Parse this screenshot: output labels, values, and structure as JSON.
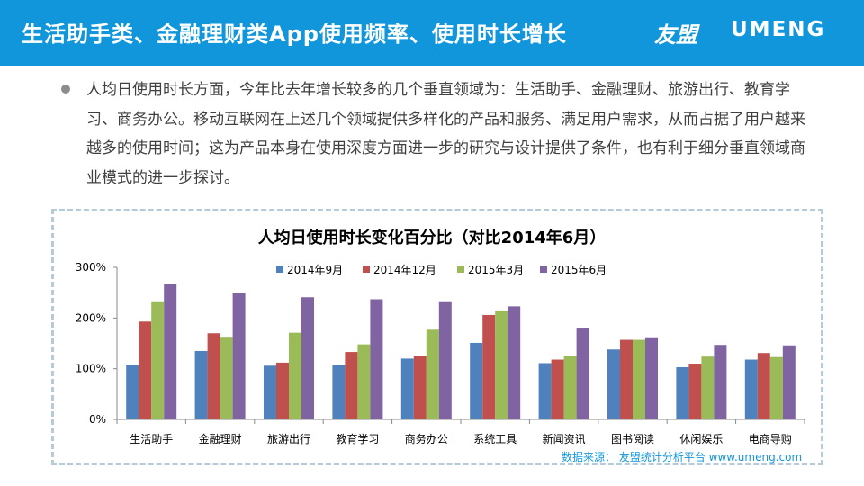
{
  "header": {
    "title": "生活助手类、金融理财类App使用频率、使用时长增长",
    "brand_cn": "友盟",
    "brand_en": "UMENG"
  },
  "paragraph": "人均日使用时长方面，今年比去年增长较多的几个垂直领域为：生活助手、金融理财、旅游出行、教育学习、商务办公。移动互联网在上述几个领域提供多样化的产品和服务、满足用户需求，从而占据了用户越来越多的使用时间；这为产品本身在使用深度方面进一步的研究与设计提供了条件，也有利于细分垂直领域商业模式的进一步探讨。",
  "source": "数据来源： 友盟统计分析平台 www.umeng.com",
  "colors": {
    "header_bg": "#1296db",
    "series": [
      "#4f81bd",
      "#c0504d",
      "#9bbb59",
      "#8064a2"
    ]
  },
  "chart_data": {
    "type": "bar",
    "title": "人均日使用时长变化百分比（对比2014年6月）",
    "xlabel": "",
    "ylabel": "",
    "ylim": [
      0,
      300
    ],
    "yticks": [
      0,
      100,
      200,
      300
    ],
    "ytick_labels": [
      "0%",
      "100%",
      "200%",
      "300%"
    ],
    "grid": false,
    "legend": "top",
    "categories": [
      "生活助手",
      "金融理财",
      "旅游出行",
      "教育学习",
      "商务办公",
      "系统工具",
      "新闻资讯",
      "图书阅读",
      "休闲娱乐",
      "电商导购"
    ],
    "series": [
      {
        "name": "2014年9月",
        "values": [
          108,
          135,
          106,
          107,
          120,
          151,
          111,
          138,
          103,
          118
        ]
      },
      {
        "name": "2014年12月",
        "values": [
          193,
          170,
          112,
          133,
          126,
          206,
          118,
          157,
          110,
          131
        ]
      },
      {
        "name": "2015年3月",
        "values": [
          233,
          163,
          171,
          148,
          177,
          215,
          125,
          157,
          124,
          123
        ]
      },
      {
        "name": "2015年6月",
        "values": [
          268,
          250,
          241,
          237,
          233,
          223,
          181,
          162,
          147,
          146
        ]
      }
    ]
  }
}
